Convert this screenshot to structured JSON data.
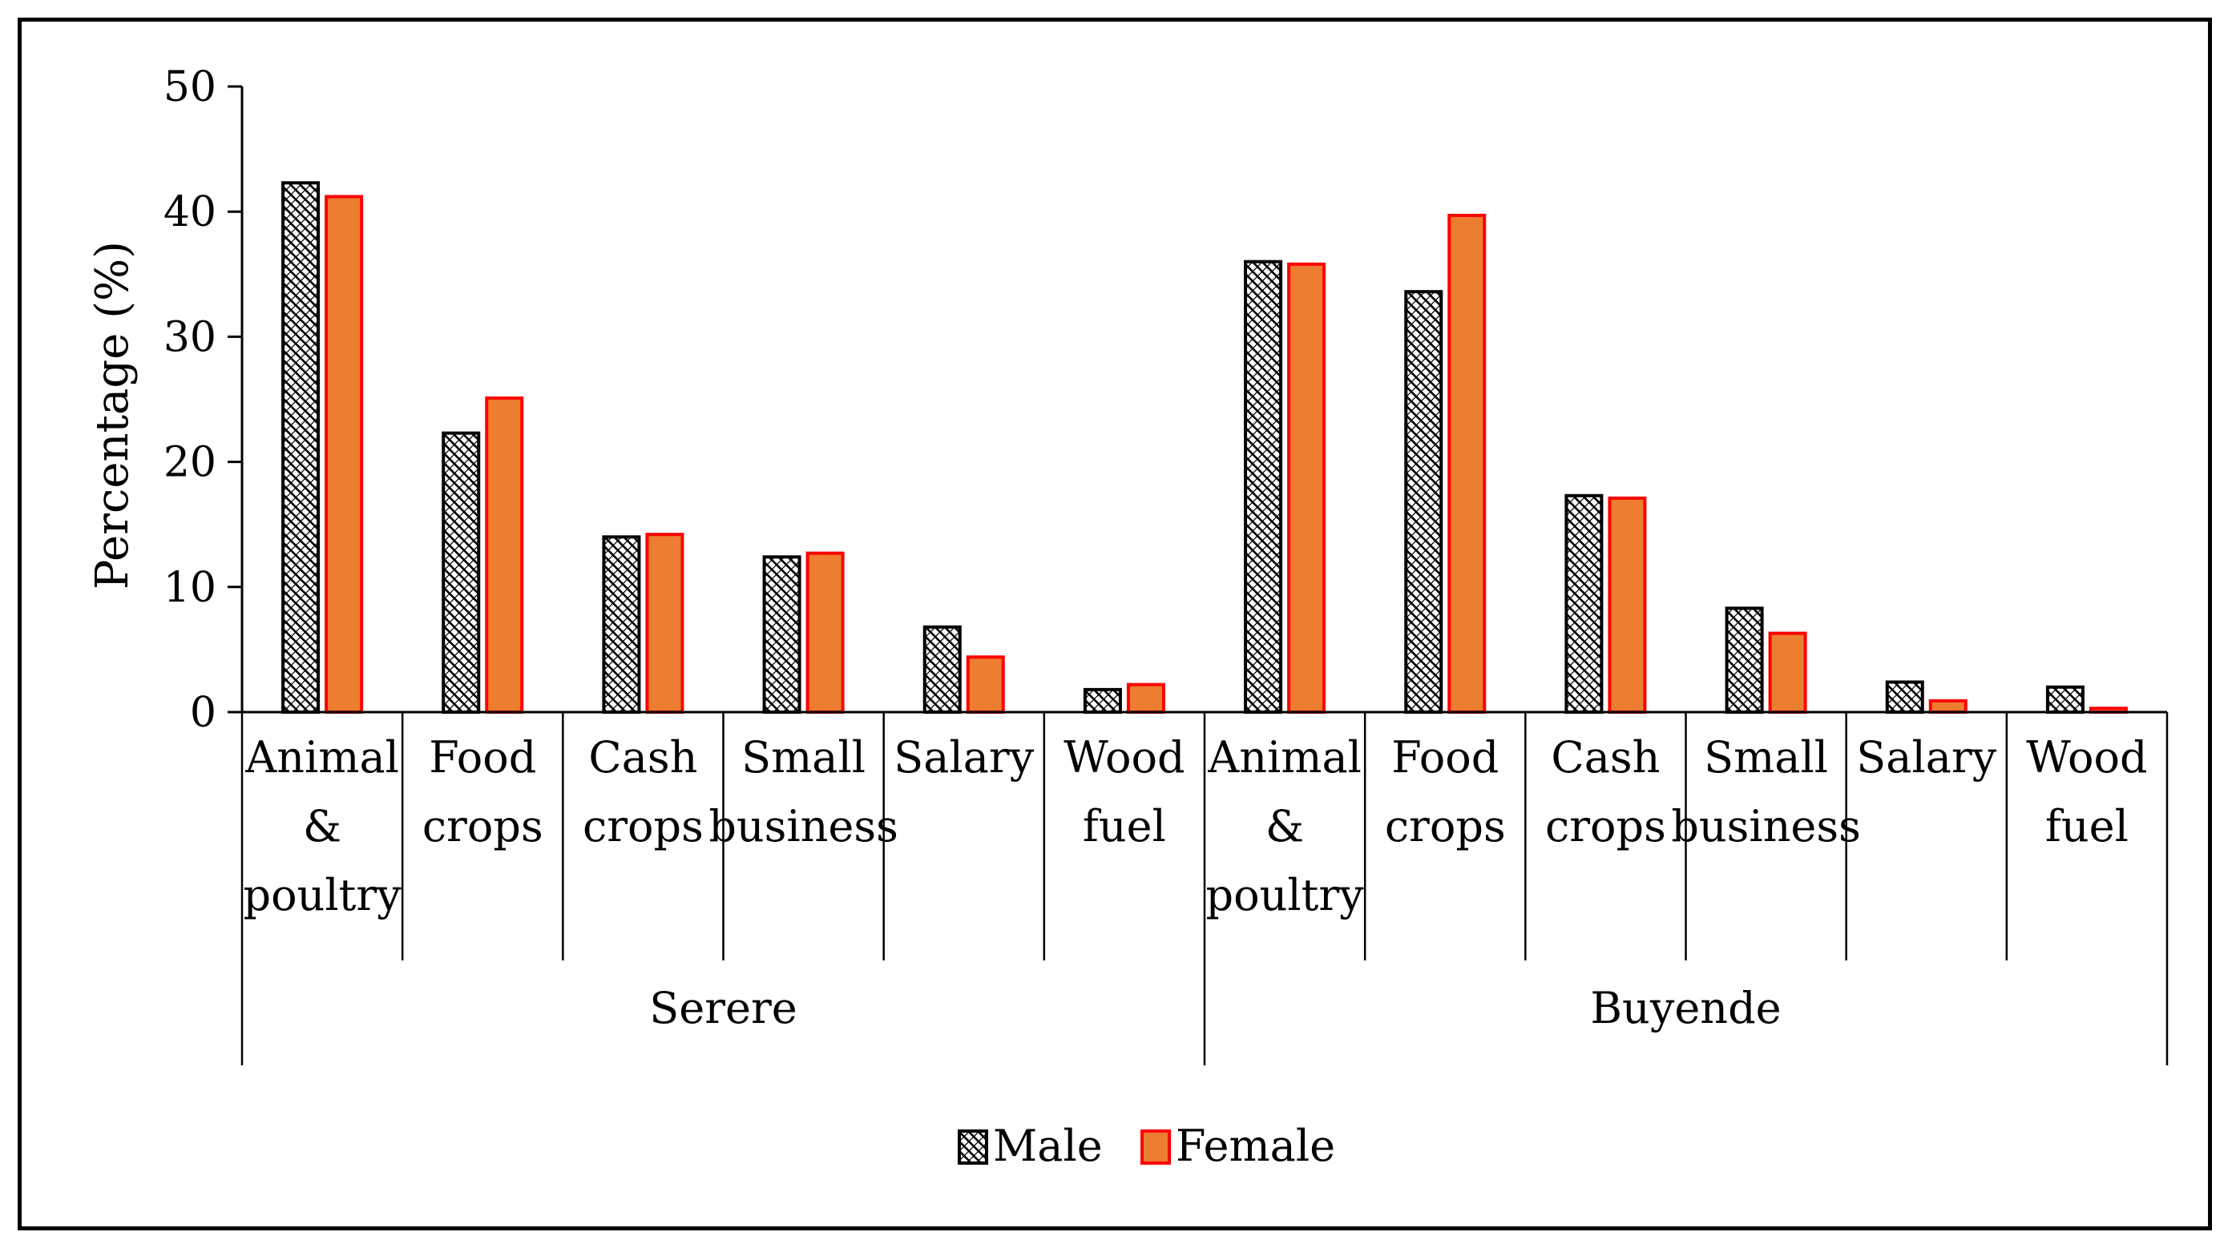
{
  "chart_data": {
    "type": "bar",
    "title": "",
    "xlabel": "",
    "ylabel": "Percentage (%)",
    "ylim": [
      0,
      50
    ],
    "yticks": [
      0,
      10,
      20,
      30,
      40,
      50
    ],
    "grid": false,
    "legend_position": "bottom-center",
    "groups": [
      {
        "name": "Serere",
        "categories": [
          "Animal & poultry",
          "Food crops",
          "Cash crops",
          "Small business",
          "Salary",
          "Wood fuel"
        ]
      },
      {
        "name": "Buyende",
        "categories": [
          "Animal & poultry",
          "Food crops",
          "Cash crops",
          "Small business",
          "Salary",
          "Wood fuel"
        ]
      }
    ],
    "category_lines": [
      [
        "Animal",
        "&",
        "poultry"
      ],
      [
        "Food",
        "crops"
      ],
      [
        "Cash",
        "crops"
      ],
      [
        "Small",
        "business"
      ],
      [
        "Salary"
      ],
      [
        "Wood",
        "fuel"
      ]
    ],
    "series": [
      {
        "name": "Male",
        "pattern": "hatched",
        "values": [
          42.3,
          22.3,
          14.0,
          12.4,
          6.8,
          1.8,
          36.0,
          33.6,
          17.3,
          8.3,
          2.4,
          2.0
        ]
      },
      {
        "name": "Female",
        "pattern": "solid",
        "values": [
          41.2,
          25.1,
          14.2,
          12.7,
          4.4,
          2.2,
          35.8,
          39.7,
          17.1,
          6.3,
          0.9,
          0.3
        ]
      }
    ],
    "colors": {
      "female_fill": "#ED7D31",
      "female_edge": "#FF0000",
      "male_edge": "#000000",
      "male_fill": "#ffffff"
    }
  }
}
